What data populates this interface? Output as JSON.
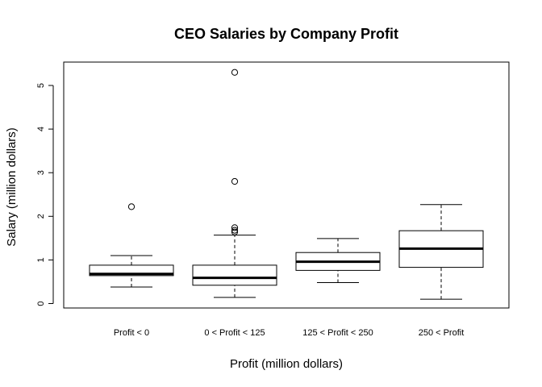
{
  "chart_data": {
    "type": "boxplot",
    "title": "CEO Salaries by Company Profit",
    "xlabel": "Profit (million dollars)",
    "ylabel": "Salary (million dollars)",
    "ylim": [
      0,
      5.5
    ],
    "yticks": [
      0,
      1,
      2,
      3,
      4,
      5
    ],
    "ytick_labels": [
      "0",
      "1",
      "2",
      "3",
      "4",
      "5"
    ],
    "grid": false,
    "categories": [
      "Profit < 0",
      "0 < Profit < 125",
      "125 < Profit < 250",
      "250 < Profit"
    ],
    "boxes": [
      {
        "category": "Profit < 0",
        "whisker_low": 0.38,
        "q1": 0.64,
        "median": 0.68,
        "q3": 0.88,
        "whisker_high": 1.1,
        "outliers": [
          2.22
        ]
      },
      {
        "category": "0 < Profit < 125",
        "whisker_low": 0.14,
        "q1": 0.42,
        "median": 0.59,
        "q3": 0.88,
        "whisker_high": 1.57,
        "outliers": [
          1.64,
          1.68,
          1.74,
          2.8,
          5.3
        ]
      },
      {
        "category": "125 < Profit < 250",
        "whisker_low": 0.48,
        "q1": 0.76,
        "median": 0.96,
        "q3": 1.17,
        "whisker_high": 1.49,
        "outliers": []
      },
      {
        "category": "250 < Profit",
        "whisker_low": 0.1,
        "q1": 0.83,
        "median": 1.26,
        "q3": 1.67,
        "whisker_high": 2.27,
        "outliers": []
      }
    ]
  }
}
